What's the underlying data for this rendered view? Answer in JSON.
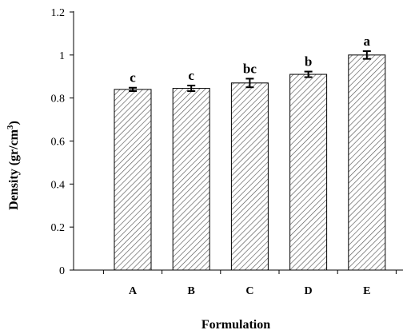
{
  "chart_data": {
    "type": "bar",
    "xlabel": "Formulation",
    "ylabel": "Density (gr/cm",
    "ylabel_superscript": "3",
    "ylabel_close": ")",
    "categories": [
      "A",
      "B",
      "C",
      "D",
      "E"
    ],
    "values": [
      0.84,
      0.845,
      0.87,
      0.91,
      1.0
    ],
    "errors": [
      0.008,
      0.013,
      0.02,
      0.013,
      0.018
    ],
    "significance_letters": [
      "c",
      "c",
      "bc",
      "b",
      "a"
    ],
    "ylim": [
      0,
      1.2
    ],
    "yticks": [
      "0",
      "0.2",
      "0.4",
      "0.6",
      "0.8",
      "1",
      "1.2"
    ],
    "grid": false,
    "bar_fill": "diagonal-hatch",
    "colors": {
      "bar_stroke": "#000000",
      "hatch": "#555555",
      "axis": "#000000"
    }
  }
}
